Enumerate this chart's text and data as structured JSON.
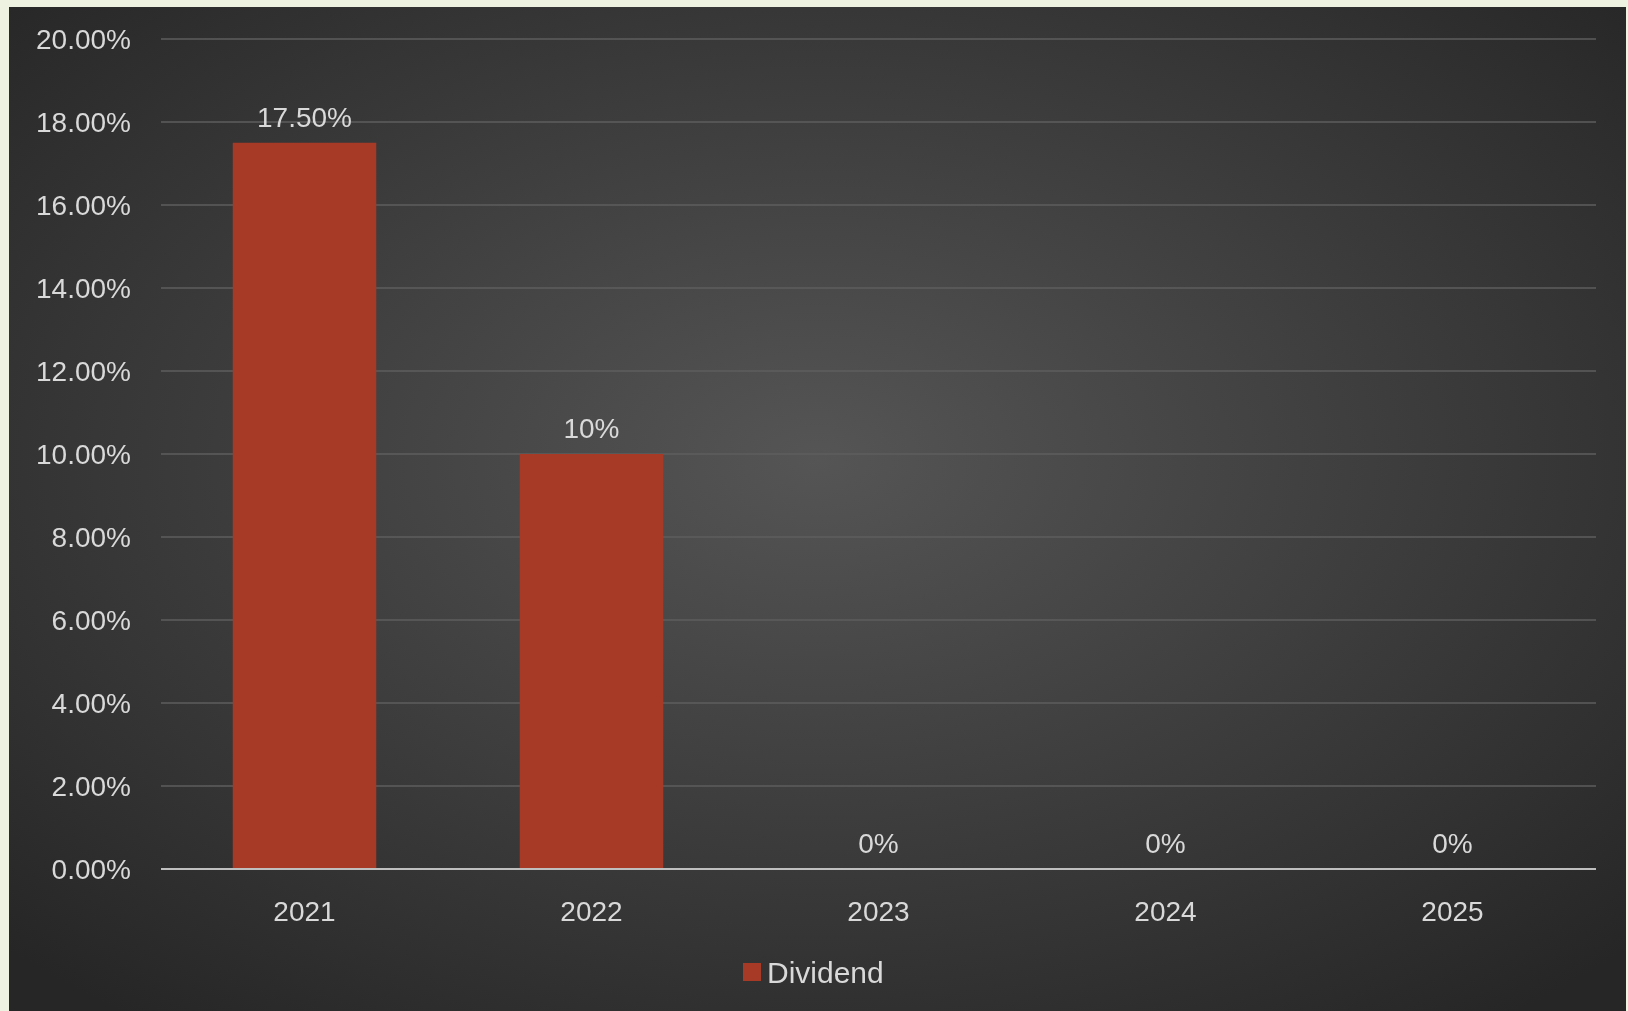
{
  "chart_data": {
    "type": "bar",
    "categories": [
      "2021",
      "2022",
      "2023",
      "2024",
      "2025"
    ],
    "series": [
      {
        "name": "Dividend",
        "color": "#a63a26",
        "values": [
          17.5,
          10,
          0,
          0,
          0
        ],
        "value_labels": [
          "17.50%",
          "10%",
          "0%",
          "0%",
          "0%"
        ]
      }
    ],
    "ylim": [
      0,
      20
    ],
    "yticks": [
      {
        "value": 0,
        "label": "0.00%"
      },
      {
        "value": 2,
        "label": "2.00%"
      },
      {
        "value": 4,
        "label": "4.00%"
      },
      {
        "value": 6,
        "label": "6.00%"
      },
      {
        "value": 8,
        "label": "8.00%"
      },
      {
        "value": 10,
        "label": "10.00%"
      },
      {
        "value": 12,
        "label": "12.00%"
      },
      {
        "value": 14,
        "label": "14.00%"
      },
      {
        "value": 16,
        "label": "16.00%"
      },
      {
        "value": 18,
        "label": "18.00%"
      },
      {
        "value": 20,
        "label": "20.00%"
      }
    ],
    "grid": "y",
    "legend": "bottom"
  }
}
